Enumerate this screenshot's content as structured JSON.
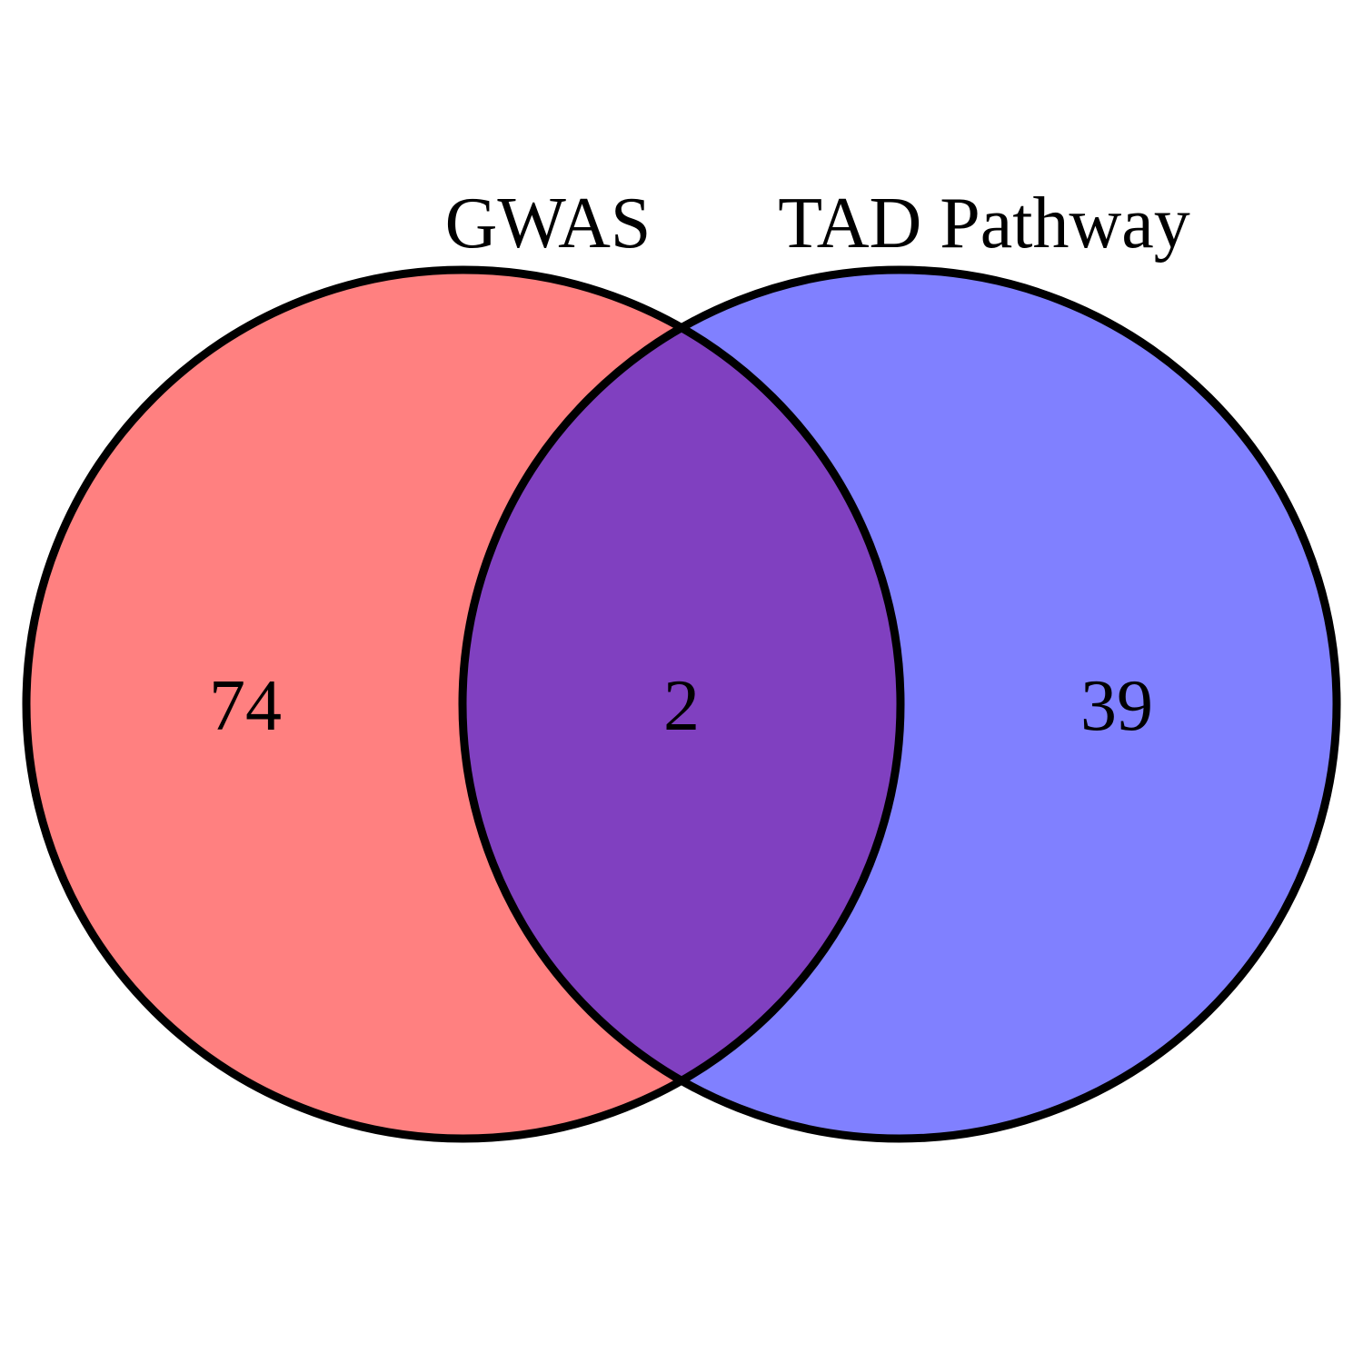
{
  "venn": {
    "sets": [
      {
        "name": "GWAS",
        "color": "#ff8080"
      },
      {
        "name": "TAD Pathway",
        "color": "#8080ff"
      }
    ],
    "overlap_color": "#8040c0",
    "counts": {
      "left_only": "74",
      "overlap": "2",
      "right_only": "39"
    }
  }
}
